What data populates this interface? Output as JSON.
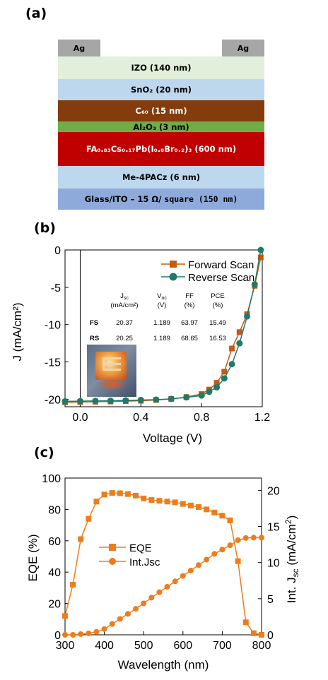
{
  "panel_labels": {
    "a": "(a)",
    "b": "(b)",
    "c": "(c)"
  },
  "device_stack": {
    "contacts": [
      "Ag",
      "Ag"
    ],
    "layers": [
      {
        "id": "izo",
        "text": "IZO (140 nm)",
        "color": "#e2efda"
      },
      {
        "id": "sno2",
        "text": "SnO₂ (20 nm)",
        "color": "#bdd7ee"
      },
      {
        "id": "c60",
        "text": "C₆₀ (15 nm)",
        "color": "#843c0c"
      },
      {
        "id": "al2o3",
        "text": "Al₂O₃ (3 nm)",
        "color": "#70ad47"
      },
      {
        "id": "perovskite",
        "text": "FA₀.₈₃Cs₀.₁₇Pb(I₀.₈Br₀.₂)₃ (600 nm)",
        "color": "#c00000"
      },
      {
        "id": "me4pacz",
        "text": "Me-4PACz (6 nm)",
        "color": "#bdd7ee"
      },
      {
        "id": "substrate",
        "text": "Glass/ITO – 15 Ω/",
        "text_mono": "square (150 nm)",
        "color": "#8eaadb"
      }
    ]
  },
  "chart_data": [
    {
      "type": "line",
      "xlabel": "Voltage (V)",
      "ylabel": "J (mA/cm²)",
      "xlim": [
        -0.1,
        1.2
      ],
      "ylim": [
        -21,
        0
      ],
      "xticks": [
        "0.0",
        "0.4",
        "0.8",
        "1.2"
      ],
      "xtick_values": [
        0.0,
        0.4,
        0.8,
        1.2
      ],
      "yticks": [
        "0",
        "-5",
        "-10",
        "-15",
        "-20"
      ],
      "ytick_values": [
        0,
        -5,
        -10,
        -15,
        -20
      ],
      "legend_position": "top-right",
      "series": [
        {
          "name": "Forward Scan",
          "color": "#c55a11",
          "marker": "square",
          "x": [
            -0.1,
            0.0,
            0.1,
            0.2,
            0.3,
            0.4,
            0.5,
            0.6,
            0.7,
            0.8,
            0.85,
            0.9,
            0.95,
            1.0,
            1.05,
            1.1,
            1.15,
            1.19
          ],
          "y": [
            -20.4,
            -20.37,
            -20.33,
            -20.3,
            -20.25,
            -20.2,
            -20.1,
            -19.95,
            -19.7,
            -19.3,
            -18.7,
            -17.8,
            -16.3,
            -13.2,
            -11.0,
            -8.6,
            -4.8,
            -1.0
          ]
        },
        {
          "name": "Reverse Scan",
          "color": "#1f7a6b",
          "marker": "circle",
          "x": [
            -0.1,
            0.0,
            0.1,
            0.2,
            0.3,
            0.4,
            0.5,
            0.6,
            0.7,
            0.8,
            0.85,
            0.9,
            0.95,
            1.0,
            1.05,
            1.1,
            1.15,
            1.19
          ],
          "y": [
            -20.28,
            -20.25,
            -20.22,
            -20.2,
            -20.15,
            -20.1,
            -20.05,
            -19.95,
            -19.75,
            -19.5,
            -19.0,
            -18.4,
            -17.2,
            -15.3,
            -12.5,
            -8.9,
            -4.6,
            0.0
          ]
        }
      ],
      "table": {
        "headers": [
          "Jsc",
          "Voc",
          "FF",
          "PCE"
        ],
        "units": [
          "(mA/cm²)",
          "(V)",
          "(%)",
          "(%)"
        ],
        "rows": [
          {
            "label": "FS",
            "values": [
              "20.37",
              "1.189",
              "63.97",
              "15.49"
            ]
          },
          {
            "label": "RS",
            "values": [
              "20.25",
              "1.189",
              "68.65",
              "16.53"
            ]
          }
        ]
      }
    },
    {
      "type": "line",
      "xlabel": "Wavelength (nm)",
      "ylabel": "EQE (%)",
      "y2label": "Int. Jsc (mA/cm²)",
      "xlim": [
        300,
        800
      ],
      "ylim": [
        0,
        100
      ],
      "y2lim": [
        0,
        21.7
      ],
      "xticks": [
        "300",
        "400",
        "500",
        "600",
        "700",
        "800"
      ],
      "xtick_values": [
        300,
        400,
        500,
        600,
        700,
        800
      ],
      "yticks": [
        "0",
        "20",
        "40",
        "60",
        "80",
        "100"
      ],
      "ytick_values": [
        0,
        20,
        40,
        60,
        80,
        100
      ],
      "y2ticks": [
        "0",
        "5",
        "10",
        "15",
        "20"
      ],
      "y2tick_values": [
        0,
        5,
        10,
        15,
        20
      ],
      "legend_position": "center-left",
      "series": [
        {
          "name": "EQE",
          "axis": "left",
          "color": "#ed7d1a",
          "marker": "square",
          "x": [
            300,
            320,
            340,
            360,
            380,
            400,
            420,
            440,
            460,
            480,
            500,
            520,
            540,
            560,
            580,
            600,
            620,
            640,
            660,
            680,
            700,
            720,
            740,
            760,
            780,
            800
          ],
          "y": [
            12,
            32,
            61,
            74,
            85,
            89.5,
            90.5,
            90.3,
            89.8,
            88.8,
            87,
            86,
            85.5,
            85,
            84.5,
            83.5,
            82.5,
            81.5,
            80,
            78,
            76,
            73,
            47,
            8,
            1,
            0
          ]
        },
        {
          "name": "Int.Jsc",
          "axis": "right",
          "color": "#ed7d1a",
          "marker": "circle",
          "x": [
            300,
            320,
            340,
            360,
            380,
            400,
            420,
            440,
            460,
            480,
            500,
            520,
            540,
            560,
            580,
            600,
            620,
            640,
            660,
            680,
            700,
            720,
            740,
            760,
            780,
            800
          ],
          "y": [
            0.0,
            0.0,
            0.1,
            0.2,
            0.4,
            0.8,
            1.5,
            2.2,
            2.9,
            3.6,
            4.35,
            5.15,
            5.9,
            6.65,
            7.4,
            8.15,
            8.9,
            9.65,
            10.4,
            11.2,
            11.8,
            12.4,
            13.1,
            13.4,
            13.45,
            13.45
          ]
        }
      ]
    }
  ]
}
